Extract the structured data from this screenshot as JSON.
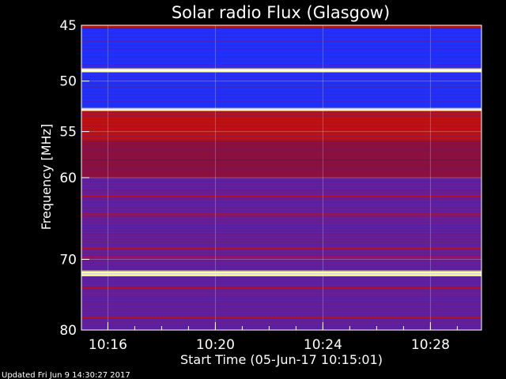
{
  "chart_data": {
    "type": "heatmap",
    "title": "Solar radio Flux (Glasgow)",
    "xlabel": "Start Time (05-Jun-17 10:15:01)",
    "ylabel": "Frequency [MHz]",
    "x_ticks": [
      "10:16",
      "10:20",
      "10:24",
      "10:28"
    ],
    "x_tick_minutes": [
      16,
      20,
      24,
      28
    ],
    "xlim_minutes": [
      15.0167,
      29.9
    ],
    "y_ticks": [
      45,
      50,
      55,
      60,
      70,
      80
    ],
    "ylim": [
      45,
      80
    ],
    "y_scale": "log",
    "colormap": [
      "#000040",
      "#1020d0",
      "#2030ff",
      "#3020b0",
      "#4020a0",
      "#6020a0",
      "#8a1040",
      "#c01010",
      "#ff2000",
      "#ff8000",
      "#ffff80",
      "#ffffff"
    ],
    "bands": [
      {
        "f_lo": 45.0,
        "f_hi": 45.25,
        "level": "high"
      },
      {
        "f_lo": 45.25,
        "f_hi": 48.8,
        "level": "low"
      },
      {
        "f_lo": 48.8,
        "f_hi": 49.2,
        "level": "very-high"
      },
      {
        "f_lo": 49.2,
        "f_hi": 52.6,
        "level": "low"
      },
      {
        "f_lo": 52.6,
        "f_hi": 52.9,
        "level": "very-high"
      },
      {
        "f_lo": 52.9,
        "f_hi": 56.0,
        "level": "high"
      },
      {
        "f_lo": 56.0,
        "f_hi": 58.0,
        "level": "medium-high"
      },
      {
        "f_lo": 58.0,
        "f_hi": 60.0,
        "level": "medium"
      },
      {
        "f_lo": 60.0,
        "f_hi": 71.5,
        "level": "medium-low"
      },
      {
        "f_lo": 71.5,
        "f_hi": 72.3,
        "level": "very-high"
      },
      {
        "f_lo": 72.3,
        "f_hi": 80.0,
        "level": "medium-low"
      }
    ],
    "grid": true
  },
  "footer": "Updated Fri Jun  9 14:30:27 2017"
}
